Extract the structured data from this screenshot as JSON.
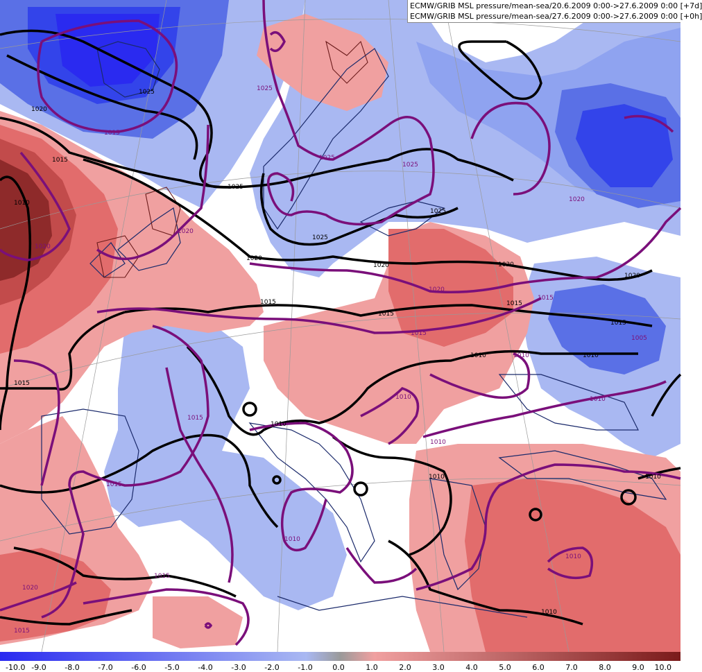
{
  "legend": {
    "line1": "ECMW/GRIB MSL pressure/mean-sea/20.6.2009 0:00->27.6.2009 0:00 [+7d]",
    "line2": "ECMW/GRIB MSL pressure/mean-sea/27.6.2009 0:00->27.6.2009 0:00 [+0h]"
  },
  "colors": {
    "line1_swatch": "#000000",
    "line2_swatch": "#7a0f7a",
    "neg_strong": "#2a2af0",
    "neg_mid": "#5a70e6",
    "neg_light": "#a9b8f2",
    "pos_light": "#f0a0a0",
    "pos_mid": "#e26c6c",
    "pos_strong": "#7a1a1a"
  },
  "scale": {
    "ticks": [
      "-10.0",
      "-9.0",
      "-8.0",
      "-7.0",
      "-6.0",
      "-5.0",
      "-4.0",
      "-3.0",
      "-2.0",
      "-1.0",
      "0.0",
      "1.0",
      "2.0",
      "3.0",
      "4.0",
      "5.0",
      "6.0",
      "7.0",
      "8.0",
      "9.0",
      "10.0"
    ]
  },
  "isobar_labels": {
    "black": [
      "1025",
      "1020",
      "1015",
      "1010",
      "1025",
      "1025",
      "1020",
      "1015",
      "1010",
      "1020",
      "1015",
      "1010",
      "1015",
      "1010",
      "1020",
      "1015",
      "1010",
      "1025",
      "1020",
      "1015",
      "1010",
      "1010"
    ],
    "purple": [
      "1015",
      "1020",
      "1025",
      "1025",
      "1025",
      "1020",
      "1020",
      "1015",
      "1010",
      "1015",
      "1010",
      "1015",
      "1010",
      "1020",
      "1005",
      "1010",
      "1010",
      "1010",
      "1015",
      "1020",
      "1015",
      "1015"
    ]
  }
}
